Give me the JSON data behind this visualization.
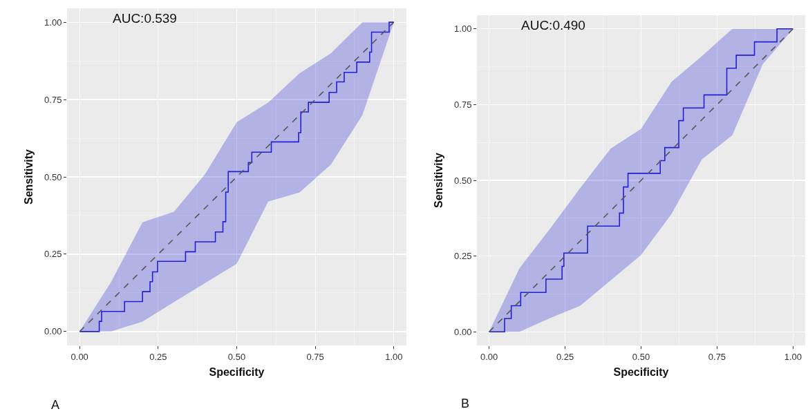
{
  "chart_data": [
    {
      "type": "line",
      "xlabel": "Specificity",
      "ylabel": "Sensitivity",
      "annotations": [
        "AUC:0.539",
        "A"
      ],
      "xlim": [
        -0.04,
        1.04
      ],
      "ylim": [
        -0.045,
        1.045
      ],
      "xticks": [
        {
          "value": 0,
          "label": "0.00"
        },
        {
          "value": 0.25,
          "label": "0.25"
        },
        {
          "value": 0.5,
          "label": "0.50"
        },
        {
          "value": 0.75,
          "label": "0.75"
        },
        {
          "value": 1,
          "label": "1.00"
        }
      ],
      "yticks": [
        {
          "value": 0,
          "label": "0.00"
        },
        {
          "value": 0.25,
          "label": "0.25"
        },
        {
          "value": 0.5,
          "label": "0.50"
        },
        {
          "value": 0.75,
          "label": "0.75"
        },
        {
          "value": 1,
          "label": "1.00"
        }
      ],
      "grid": true,
      "series": [
        {
          "type": "step",
          "color": "#2020d8",
          "x": [
            0,
            0.0625,
            0.07,
            0.143,
            0.2,
            0.224,
            0.232,
            0.248,
            0.337,
            0.368,
            0.432,
            0.456,
            0.465,
            0.473,
            0.537,
            0.548,
            0.61,
            0.697,
            0.704,
            0.728,
            0.794,
            0.818,
            0.842,
            0.882,
            0.923,
            0.929,
            0.985,
            1
          ],
          "values": [
            0,
            0.033,
            0.065,
            0.097,
            0.129,
            0.161,
            0.193,
            0.227,
            0.258,
            0.29,
            0.322,
            0.355,
            0.451,
            0.517,
            0.546,
            0.58,
            0.613,
            0.643,
            0.71,
            0.741,
            0.773,
            0.807,
            0.838,
            0.871,
            0.903,
            0.968,
            1,
            1
          ]
        },
        {
          "type": "line",
          "color": "#555555",
          "line_style": "dashed",
          "x": [
            0,
            0.1,
            0.2,
            0.3,
            0.4,
            0.5,
            0.6,
            0.7,
            0.8,
            0.9,
            1
          ],
          "values": [
            0,
            0.1,
            0.2,
            0.3,
            0.4,
            0.5,
            0.6,
            0.7,
            0.8,
            0.9,
            1
          ],
          "lower": [
            0,
            0,
            0.032,
            0.095,
            0.157,
            0.219,
            0.42,
            0.45,
            0.54,
            0.7,
            1
          ],
          "upper": [
            0,
            0.16,
            0.353,
            0.387,
            0.51,
            0.677,
            0.74,
            0.835,
            0.9,
            1,
            1
          ]
        }
      ]
    },
    {
      "type": "line",
      "xlabel": "Specificity",
      "ylabel": "Sensitivity",
      "annotations": [
        "AUC:0.490",
        "B"
      ],
      "xlim": [
        -0.04,
        1.04
      ],
      "ylim": [
        -0.045,
        1.045
      ],
      "xticks": [
        {
          "value": 0,
          "label": "0.00"
        },
        {
          "value": 0.25,
          "label": "0.25"
        },
        {
          "value": 0.5,
          "label": "0.50"
        },
        {
          "value": 0.75,
          "label": "0.75"
        },
        {
          "value": 1,
          "label": "1.00"
        }
      ],
      "yticks": [
        {
          "value": 0,
          "label": "0.00"
        },
        {
          "value": 0.25,
          "label": "0.25"
        },
        {
          "value": 0.5,
          "label": "0.50"
        },
        {
          "value": 0.75,
          "label": "0.75"
        },
        {
          "value": 1,
          "label": "1.00"
        }
      ],
      "grid": true,
      "series": [
        {
          "type": "step",
          "color": "#2020d8",
          "x": [
            0,
            0.051,
            0.073,
            0.104,
            0.187,
            0.24,
            0.246,
            0.324,
            0.429,
            0.442,
            0.457,
            0.563,
            0.578,
            0.624,
            0.639,
            0.707,
            0.782,
            0.813,
            0.873,
            0.947,
            1
          ],
          "values": [
            0,
            0.044,
            0.086,
            0.13,
            0.174,
            0.216,
            0.26,
            0.349,
            0.392,
            0.478,
            0.523,
            0.565,
            0.608,
            0.697,
            0.739,
            0.782,
            0.87,
            0.913,
            0.957,
            1,
            1
          ]
        },
        {
          "type": "line",
          "color": "#555555",
          "line_style": "dashed",
          "x": [
            0,
            0.1,
            0.2,
            0.3,
            0.4,
            0.5,
            0.6,
            0.7,
            0.8,
            0.9,
            1
          ],
          "values": [
            0,
            0.1,
            0.2,
            0.3,
            0.4,
            0.5,
            0.6,
            0.7,
            0.8,
            0.9,
            1
          ],
          "lower": [
            0,
            0,
            0.045,
            0.086,
            0.17,
            0.254,
            0.389,
            0.569,
            0.649,
            0.883,
            1
          ],
          "upper": [
            0,
            0.21,
            0.34,
            0.475,
            0.605,
            0.67,
            0.825,
            0.91,
            1,
            1,
            1
          ]
        }
      ]
    }
  ]
}
